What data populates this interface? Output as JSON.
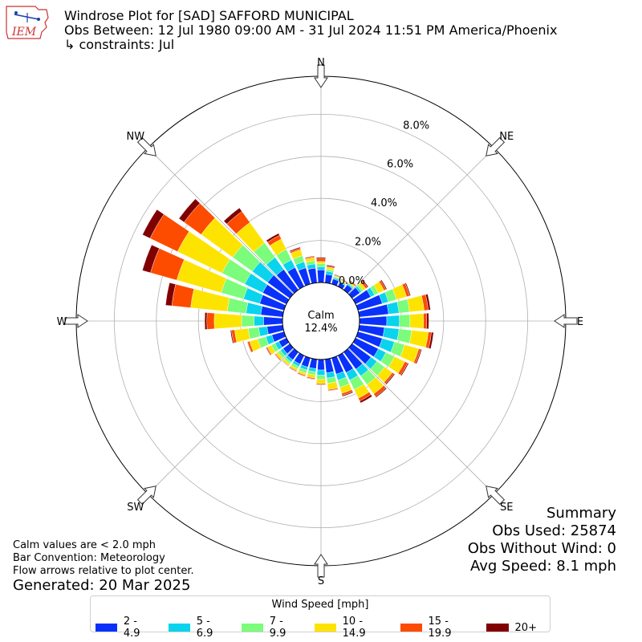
{
  "logo": {
    "text": "IEM"
  },
  "title": {
    "line1": "Windrose Plot for [SAD] SAFFORD MUNICIPAL",
    "line2": "Obs Between: 12 Jul 1980 09:00 AM - 31 Jul 2024 11:51 PM America/Phoenix",
    "line3": "↳ constraints: Jul"
  },
  "notes": {
    "calm": "Calm values are < 2.0 mph",
    "convention": "Bar Convention: Meteorology",
    "flow": "Flow arrows relative to plot center."
  },
  "generated": "Generated: 20 Mar 2025",
  "summary": {
    "heading": "Summary",
    "obs_used": "Obs Used: 25874",
    "obs_without_wind": "Obs Without Wind: 0",
    "avg_speed": "Avg Speed: 8.1 mph"
  },
  "legend": {
    "title": "Wind Speed [mph]",
    "items": [
      {
        "label": "2 - 4.9",
        "color": "#0a31fa"
      },
      {
        "label": "5 - 6.9",
        "color": "#0ad3ee"
      },
      {
        "label": "7 - 9.9",
        "color": "#7bfc7b"
      },
      {
        "label": "10 - 14.9",
        "color": "#fde400"
      },
      {
        "label": "15 - 19.9",
        "color": "#fd4b00"
      },
      {
        "label": "20+",
        "color": "#800000"
      }
    ]
  },
  "chart_data": {
    "type": "windrose",
    "calm_label": "Calm",
    "calm_value": "12.4%",
    "radial_ticks": [
      "0.0%",
      "2.0%",
      "4.0%",
      "6.0%",
      "8.0%"
    ],
    "compass_labels": [
      "N",
      "NE",
      "E",
      "SE",
      "S",
      "SW",
      "W",
      "NW"
    ],
    "speed_bins": [
      "2 - 4.9",
      "5 - 6.9",
      "7 - 9.9",
      "10 - 14.9",
      "15 - 19.9",
      "20+"
    ],
    "directions_deg": [
      0,
      10,
      20,
      30,
      40,
      50,
      60,
      70,
      80,
      90,
      100,
      110,
      120,
      130,
      140,
      150,
      160,
      170,
      180,
      190,
      200,
      210,
      220,
      230,
      240,
      250,
      260,
      270,
      280,
      290,
      300,
      310,
      320,
      330,
      340,
      350
    ],
    "cumulative_percent": [
      [
        0.6,
        0.75,
        0.9,
        1.0,
        1.15,
        1.2
      ],
      [
        0.4,
        0.55,
        0.65,
        0.75,
        0.8,
        0.85
      ],
      [
        0.25,
        0.32,
        0.38,
        0.42,
        0.45,
        0.48
      ],
      [
        0.2,
        0.25,
        0.3,
        0.34,
        0.37,
        0.4
      ],
      [
        0.3,
        0.36,
        0.42,
        0.48,
        0.52,
        0.55
      ],
      [
        0.45,
        0.55,
        0.65,
        0.8,
        0.9,
        0.95
      ],
      [
        0.8,
        1.0,
        1.2,
        1.5,
        1.6,
        1.65
      ],
      [
        1.2,
        1.5,
        1.9,
        2.4,
        2.55,
        2.6
      ],
      [
        1.4,
        1.9,
        2.4,
        3.1,
        3.3,
        3.4
      ],
      [
        1.3,
        1.9,
        2.4,
        3.05,
        3.2,
        3.3
      ],
      [
        1.2,
        1.9,
        2.5,
        3.3,
        3.45,
        3.55
      ],
      [
        1.2,
        1.8,
        2.3,
        3.0,
        3.1,
        3.15
      ],
      [
        1.2,
        1.6,
        2.05,
        2.6,
        2.75,
        2.8
      ],
      [
        1.1,
        1.45,
        1.9,
        2.35,
        2.45,
        2.5
      ],
      [
        1.0,
        1.4,
        1.9,
        2.45,
        2.6,
        2.65
      ],
      [
        0.9,
        1.3,
        1.8,
        2.25,
        2.4,
        2.5
      ],
      [
        0.8,
        1.1,
        1.45,
        1.75,
        1.85,
        1.9
      ],
      [
        0.65,
        0.9,
        1.15,
        1.45,
        1.5,
        1.52
      ],
      [
        0.5,
        0.75,
        0.95,
        1.15,
        1.2,
        1.22
      ],
      [
        0.45,
        0.6,
        0.75,
        0.9,
        0.95,
        0.97
      ],
      [
        0.45,
        0.6,
        0.75,
        0.85,
        0.9,
        0.92
      ],
      [
        0.45,
        0.58,
        0.7,
        0.8,
        0.84,
        0.86
      ],
      [
        0.45,
        0.58,
        0.68,
        0.78,
        0.8,
        0.82
      ],
      [
        0.4,
        0.55,
        0.7,
        0.82,
        0.86,
        0.88
      ],
      [
        0.4,
        0.6,
        0.8,
        1.0,
        1.05,
        1.08
      ],
      [
        0.6,
        0.9,
        1.3,
        1.7,
        1.8,
        1.82
      ],
      [
        0.75,
        1.15,
        1.65,
        2.3,
        2.45,
        2.5
      ],
      [
        0.9,
        1.35,
        1.95,
        3.25,
        3.6,
        3.7
      ],
      [
        1.05,
        1.75,
        2.65,
        4.4,
        5.3,
        5.6
      ],
      [
        1.2,
        2.0,
        3.1,
        5.3,
        6.6,
        7.0
      ],
      [
        1.25,
        2.2,
        3.4,
        5.75,
        7.2,
        7.6
      ],
      [
        1.3,
        2.2,
        3.35,
        5.2,
        6.2,
        6.5
      ],
      [
        1.2,
        1.9,
        2.75,
        3.95,
        4.6,
        4.8
      ],
      [
        1.0,
        1.4,
        1.95,
        2.5,
        2.7,
        2.8
      ],
      [
        0.8,
        1.1,
        1.4,
        1.7,
        1.77,
        1.82
      ],
      [
        0.7,
        0.9,
        1.05,
        1.2,
        1.25,
        1.28
      ]
    ]
  }
}
